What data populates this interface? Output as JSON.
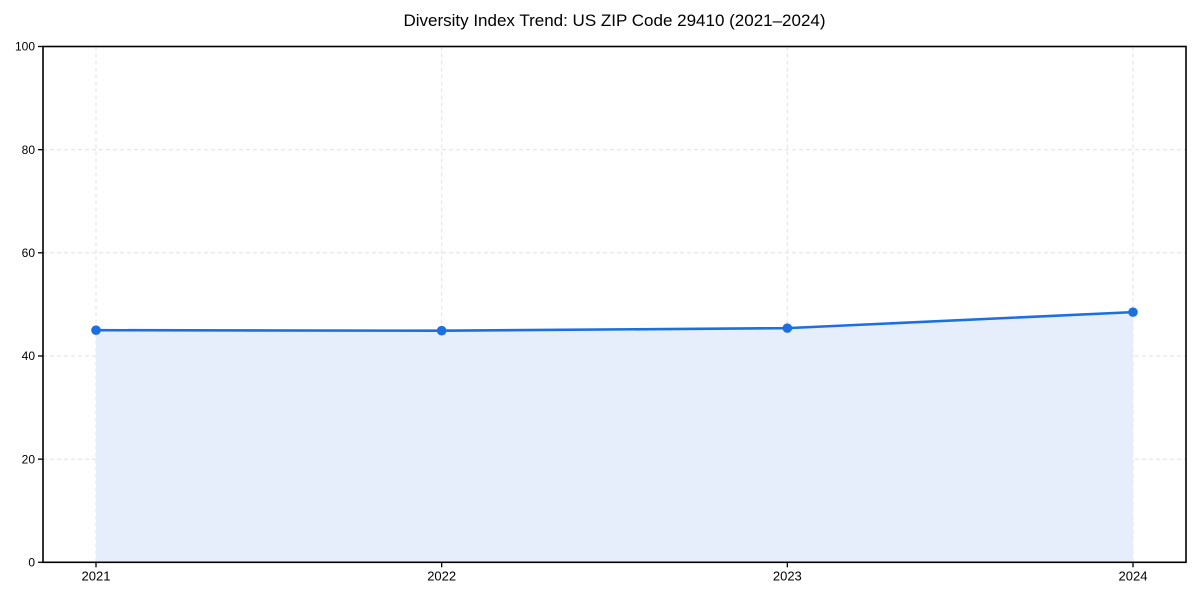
{
  "chart_data": {
    "type": "line",
    "title": "Diversity Index Trend: US ZIP Code 29410 (2021–2024)",
    "categories": [
      "2021",
      "2022",
      "2023",
      "2024"
    ],
    "series": [
      {
        "name": "Diversity Index",
        "values": [
          45.0,
          44.9,
          45.4,
          48.5
        ]
      }
    ],
    "xlabel": "",
    "ylabel": "",
    "ylim": [
      0,
      100
    ],
    "y_ticks": [
      0,
      20,
      40,
      60,
      80,
      100
    ],
    "y_tick_labels": [
      "0",
      "20",
      "40",
      "60",
      "80",
      "100"
    ],
    "grid": "dashed, horizontal and vertical",
    "legend": "none",
    "area_fill": true,
    "marker": "circle",
    "colors": {
      "line": "#1b6fe0",
      "marker": "#1b6fe0",
      "area": "#e6eefc",
      "grid": "#e4e4e4",
      "frame": "#000000",
      "text": "#000000",
      "background": "#ffffff"
    }
  }
}
